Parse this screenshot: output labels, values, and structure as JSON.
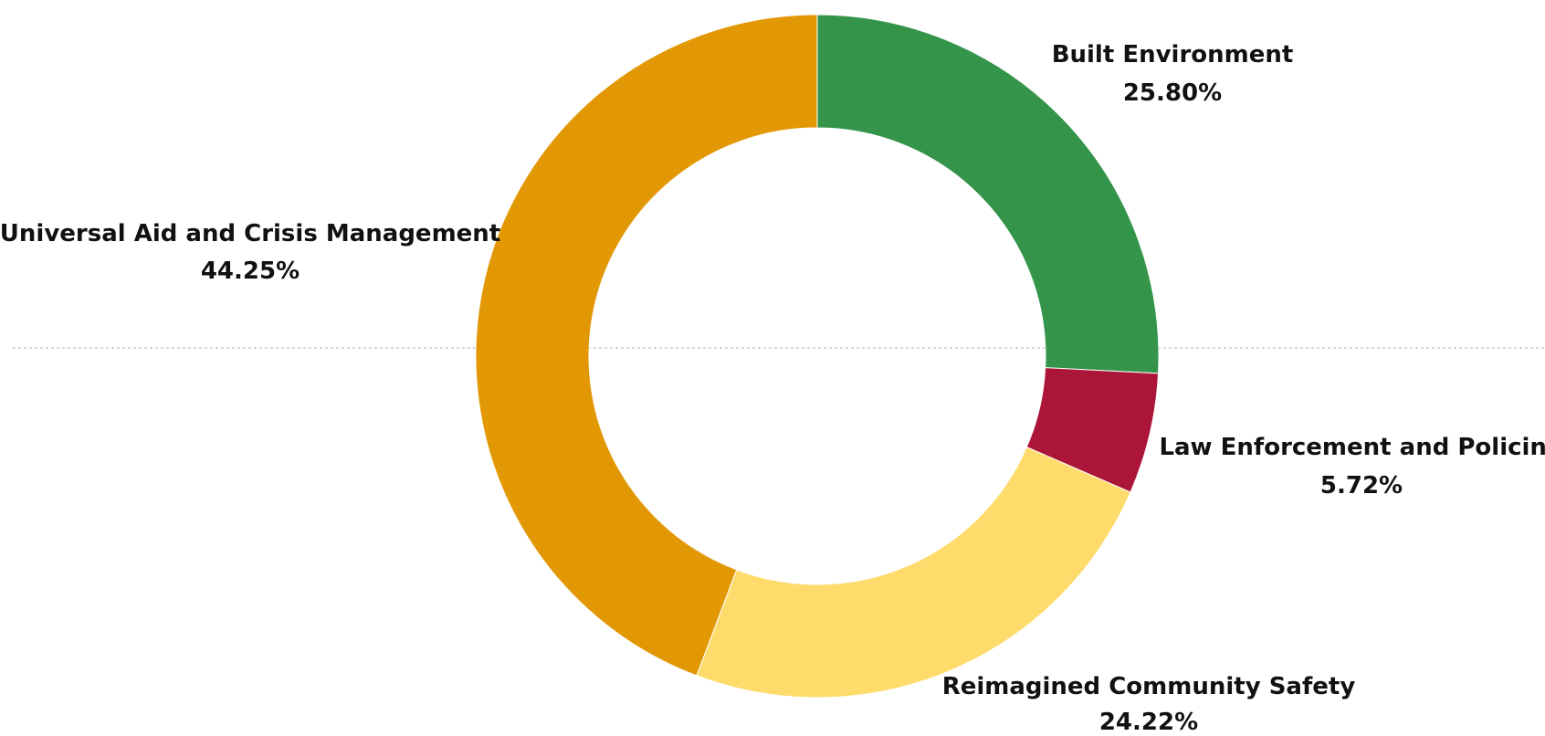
{
  "chart_data": {
    "type": "pie",
    "variant": "donut",
    "series": [
      {
        "name": "Built Environment",
        "values": [
          25.8
        ],
        "display": "25.80%",
        "color": "#33944a"
      },
      {
        "name": "Law Enforcement and Policing",
        "values": [
          5.72
        ],
        "display": "5.72%",
        "color": "#aa1538"
      },
      {
        "name": "Reimagined Community Safety",
        "values": [
          24.22
        ],
        "display": "24.22%",
        "color": "#fedb6b"
      },
      {
        "name": "Universal Aid and Crisis Management",
        "values": [
          44.25
        ],
        "display": "44.25%",
        "color": "#e29805"
      }
    ],
    "start_angle": "12 o'clock",
    "direction": "clockwise",
    "labels": "outside",
    "reference_line": "dotted horizontal line across the chart center",
    "title": "",
    "legend": "none"
  }
}
